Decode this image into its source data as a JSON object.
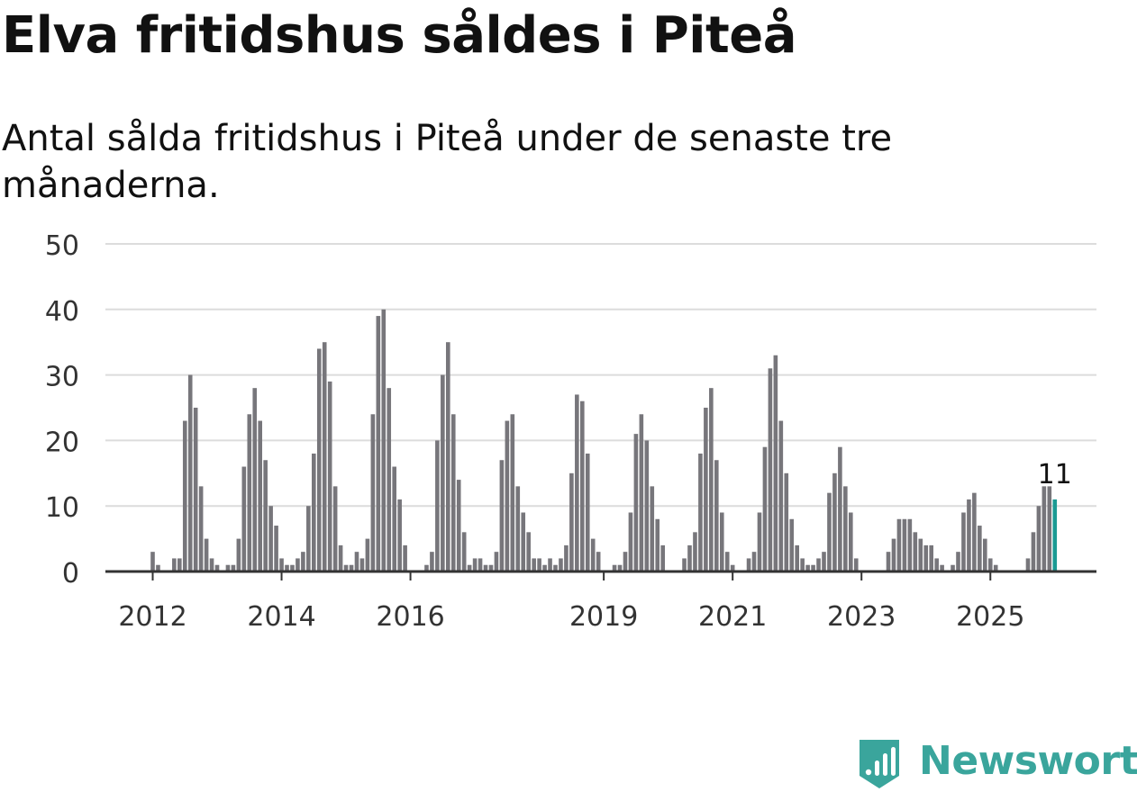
{
  "chart_data": {
    "type": "bar",
    "title": "Elva fritidshus såldes i Piteå",
    "subtitle": "Antal sålda fritidshus i Piteå under de senaste tre månaderna.",
    "xlabel": "",
    "ylabel": "",
    "ylim": [
      0,
      50
    ],
    "y_ticks": [
      0,
      10,
      20,
      30,
      40,
      50
    ],
    "grid": true,
    "x_tick_labels": [
      {
        "label": "2012",
        "index": 0
      },
      {
        "label": "2014",
        "index": 24
      },
      {
        "label": "2016",
        "index": 48
      },
      {
        "label": "2019",
        "index": 84
      },
      {
        "label": "2021",
        "index": 108
      },
      {
        "label": "2023",
        "index": 132
      },
      {
        "label": "2025",
        "index": 156
      }
    ],
    "values": [
      3,
      1,
      0,
      0,
      2,
      2,
      23,
      30,
      25,
      13,
      5,
      2,
      1,
      0,
      1,
      1,
      5,
      16,
      24,
      28,
      23,
      17,
      10,
      7,
      2,
      1,
      1,
      2,
      3,
      10,
      18,
      34,
      35,
      29,
      13,
      4,
      1,
      1,
      3,
      2,
      5,
      24,
      39,
      40,
      28,
      16,
      11,
      4,
      0,
      0,
      0,
      1,
      3,
      20,
      30,
      35,
      24,
      14,
      6,
      1,
      2,
      2,
      1,
      1,
      3,
      17,
      23,
      24,
      13,
      9,
      6,
      2,
      2,
      1,
      2,
      1,
      2,
      4,
      15,
      27,
      26,
      18,
      5,
      3,
      0,
      0,
      1,
      1,
      3,
      9,
      21,
      24,
      20,
      13,
      8,
      4,
      0,
      0,
      0,
      2,
      4,
      6,
      18,
      25,
      28,
      17,
      9,
      3,
      1,
      0,
      0,
      2,
      3,
      9,
      19,
      31,
      33,
      23,
      15,
      8,
      4,
      2,
      1,
      1,
      2,
      3,
      12,
      15,
      19,
      13,
      9,
      2,
      0,
      0,
      0,
      0,
      0,
      3,
      5,
      8,
      8,
      8,
      6,
      5,
      4,
      4,
      2,
      1,
      0,
      1,
      3,
      9,
      11,
      12,
      7,
      5,
      2,
      1,
      0,
      0,
      0,
      0,
      0,
      2,
      6,
      10,
      13,
      13,
      11
    ],
    "highlight": {
      "index": 168,
      "label": "11",
      "color": "#1a9a93"
    },
    "bar_color": "#77767b"
  },
  "brand": {
    "name": "Newsworthy",
    "color": "#3aa59c",
    "icon": "newsworthy-logo-icon"
  }
}
